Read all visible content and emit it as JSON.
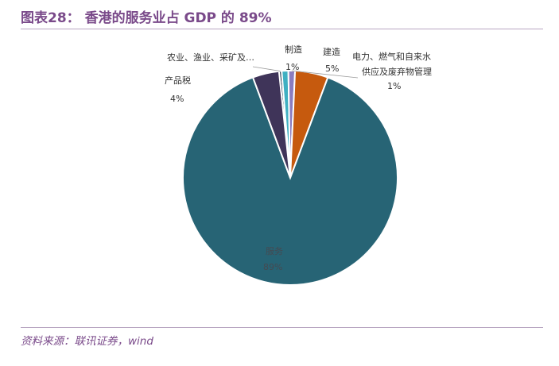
{
  "title": "图表28： 香港的服务业占 GDP 的 89%",
  "source": "资料来源：联讯证券，wind",
  "chart_data": {
    "type": "pie",
    "slices": [
      {
        "name": "农业、渔业、采矿及…",
        "value": 0,
        "label": "",
        "color": "#1f3a50"
      },
      {
        "name": "制造",
        "value": 1,
        "label": "1%",
        "color": "#3fb0c2"
      },
      {
        "name": "电力、燃气和自来水供应及废弃物管理",
        "value": 1,
        "label": "1%",
        "color": "#8a7cc0"
      },
      {
        "name": "建造",
        "value": 5,
        "label": "5%",
        "color": "#c65a0e"
      },
      {
        "name": "服务",
        "value": 89,
        "label": "89%",
        "color": "#276475"
      },
      {
        "name": "产品税",
        "value": 4,
        "label": "4%",
        "color": "#3f3459"
      }
    ],
    "label_lines": {
      "electricity_line1": "电力、燃气和自来水",
      "electricity_line2": "供应及废弃物管理"
    }
  }
}
